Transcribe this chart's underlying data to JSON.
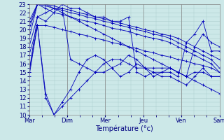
{
  "title": "Température (°c)",
  "bg_color": "#cce8e8",
  "grid_color": "#aacccc",
  "line_color": "#0000bb",
  "marker_color": "#0000bb",
  "x_labels": [
    "Mar",
    "Dim",
    "Mer",
    "Jeu",
    "Ven",
    "Sam"
  ],
  "ylim": [
    10,
    23
  ],
  "yticks": [
    10,
    11,
    12,
    13,
    14,
    15,
    16,
    17,
    18,
    19,
    20,
    21,
    22,
    23
  ],
  "series": [
    [
      19.0,
      23.0,
      23.0,
      22.5,
      22.0,
      21.5,
      21.0,
      20.5,
      20.0,
      19.5,
      19.0,
      18.5,
      18.0,
      17.5,
      17.0,
      16.5,
      16.0,
      15.5,
      15.0,
      14.5,
      14.0,
      13.5,
      13.0,
      12.5
    ],
    [
      20.0,
      23.0,
      22.5,
      22.0,
      21.8,
      21.5,
      21.2,
      21.0,
      20.8,
      20.5,
      20.2,
      20.0,
      19.8,
      19.5,
      19.2,
      19.0,
      18.8,
      18.5,
      18.0,
      17.5,
      17.0,
      16.5,
      16.0,
      15.0
    ],
    [
      20.5,
      23.0,
      22.8,
      22.5,
      22.3,
      22.0,
      21.8,
      21.5,
      21.3,
      21.0,
      20.8,
      20.5,
      20.3,
      20.0,
      19.8,
      19.5,
      19.3,
      19.0,
      18.5,
      18.0,
      17.5,
      17.0,
      16.5,
      15.5
    ],
    [
      21.0,
      23.0,
      23.0,
      22.8,
      22.5,
      22.3,
      22.0,
      21.8,
      21.5,
      21.3,
      21.0,
      20.8,
      20.5,
      20.3,
      20.0,
      19.8,
      19.5,
      19.3,
      19.0,
      18.5,
      18.0,
      17.5,
      17.0,
      16.5
    ],
    [
      17.0,
      20.5,
      20.5,
      20.3,
      20.0,
      19.8,
      19.5,
      19.3,
      19.0,
      18.8,
      18.5,
      18.3,
      18.0,
      17.8,
      17.5,
      17.3,
      17.0,
      16.8,
      16.5,
      16.3,
      16.0,
      15.8,
      15.5,
      15.0
    ],
    [
      14.5,
      20.5,
      12.5,
      10.0,
      11.0,
      12.0,
      13.0,
      14.0,
      15.0,
      16.0,
      16.5,
      16.5,
      16.0,
      15.5,
      15.5,
      15.5,
      15.5,
      15.5,
      15.0,
      14.5,
      15.0,
      15.0,
      14.5,
      14.5
    ],
    [
      18.0,
      21.5,
      21.0,
      22.0,
      23.0,
      22.5,
      22.5,
      22.0,
      21.5,
      21.5,
      21.0,
      21.0,
      21.5,
      15.0,
      14.5,
      15.0,
      15.0,
      15.0,
      14.5,
      18.5,
      19.5,
      21.0,
      17.5,
      17.5
    ],
    [
      15.0,
      21.5,
      22.0,
      22.5,
      22.5,
      16.5,
      16.0,
      15.5,
      15.0,
      15.0,
      15.5,
      16.0,
      17.0,
      16.5,
      15.5,
      14.5,
      15.0,
      15.5,
      15.0,
      14.5,
      18.0,
      19.5,
      18.5,
      18.0
    ],
    [
      15.0,
      20.5,
      12.0,
      10.0,
      11.5,
      13.0,
      15.0,
      16.5,
      17.0,
      16.5,
      15.5,
      14.5,
      15.0,
      16.0,
      15.5,
      15.0,
      14.5,
      14.5,
      14.0,
      13.5,
      14.5,
      15.5,
      14.5,
      14.5
    ]
  ],
  "n_points": 24,
  "tick_fontsize": 6,
  "label_fontsize": 7
}
